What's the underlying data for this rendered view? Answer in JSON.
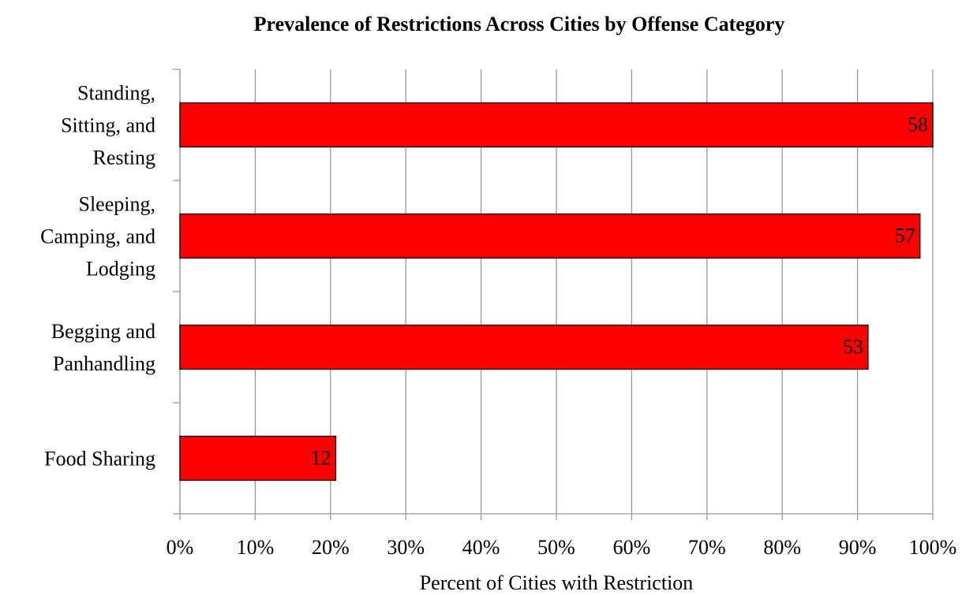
{
  "chart_data": {
    "type": "hbar",
    "title": "Prevalence of Restrictions Across Cities by Offense Category",
    "x_label": "Percent of Cities with Restriction",
    "categories": [
      "Standing, Sitting, and Resting",
      "Sleeping, Camping, and Lodging",
      "Begging and Panhandling",
      "Food Sharing"
    ],
    "values": [
      100,
      98.3,
      91.4,
      20.7
    ],
    "counts": [
      58,
      57,
      53,
      12
    ],
    "color": "#ff0000",
    "xlim": [
      0,
      100
    ],
    "xticks": [
      {
        "value": 0,
        "label": "0%"
      },
      {
        "value": 10,
        "label": "10%"
      },
      {
        "value": 20,
        "label": "20%"
      },
      {
        "value": 30,
        "label": "30%"
      },
      {
        "value": 40,
        "label": "40%"
      },
      {
        "value": 50,
        "label": "50%"
      },
      {
        "value": 60,
        "label": "60%"
      },
      {
        "value": 70,
        "label": "70%"
      },
      {
        "value": 80,
        "label": "80%"
      },
      {
        "value": 90,
        "label": "90%"
      },
      {
        "value": 100,
        "label": "100%"
      }
    ],
    "grid": true
  }
}
